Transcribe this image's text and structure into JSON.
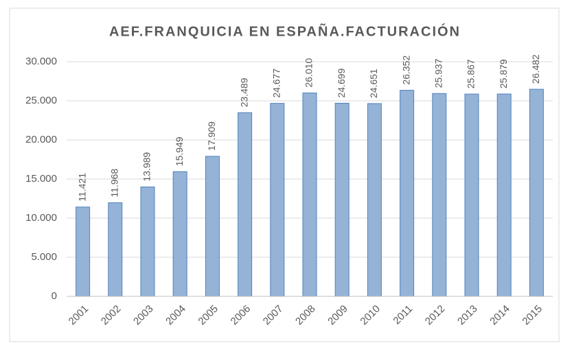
{
  "chart_data": {
    "type": "bar",
    "title": "AEF.FRANQUICIA EN ESPAÑA.FACTURACIÓN",
    "categories": [
      "2001",
      "2002",
      "2003",
      "2004",
      "2005",
      "2006",
      "2007",
      "2008",
      "2009",
      "2010",
      "2011",
      "2012",
      "2013",
      "2014",
      "2015"
    ],
    "values": [
      11421,
      11968,
      13989,
      15949,
      17909,
      23489,
      24677,
      26010,
      24699,
      24651,
      26352,
      25937,
      25867,
      25879,
      26482
    ],
    "value_labels": [
      "11.421",
      "11.968",
      "13.989",
      "15.949",
      "17.909",
      "23.489",
      "24.677",
      "26.010",
      "24.699",
      "24.651",
      "26.352",
      "25.937",
      "25.867",
      "25.879",
      "26.482"
    ],
    "color": "#95b3d7",
    "ylim": [
      0,
      30000
    ],
    "yticks": [
      0,
      {
        "value": 5000,
        "label": "5.000"
      },
      {
        "value": 10000,
        "label": "10.000"
      },
      {
        "value": 15000,
        "label": "15.000"
      },
      {
        "value": 20000,
        "label": "20.000"
      },
      {
        "value": 25000,
        "label": "25.000"
      },
      {
        "value": 30000,
        "label": "30.000"
      }
    ],
    "grid": true
  }
}
